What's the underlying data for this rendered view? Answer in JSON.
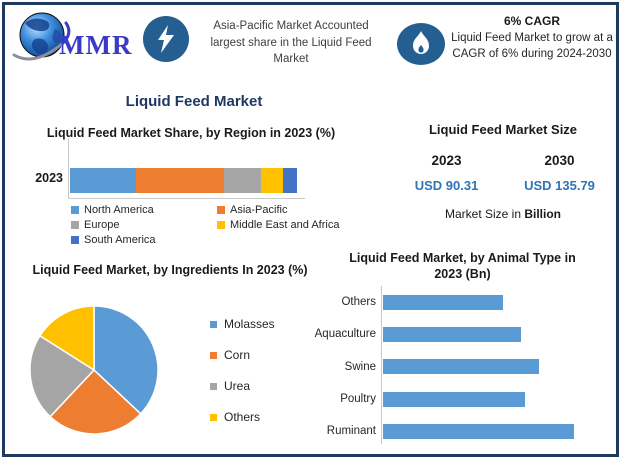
{
  "brand": {
    "logo_text": "MMR"
  },
  "header": {
    "highlight": {
      "icon": "lightning-icon",
      "text": "Asia-Pacific Market Accounted largest share in the Liquid Feed Market"
    },
    "cagr": {
      "icon": "flame-icon",
      "title": "6% CAGR",
      "text": "Liquid Feed Market to grow at a CAGR of 6% during 2024-2030"
    }
  },
  "main_title": "Liquid Feed Market",
  "market_size": {
    "title": "Liquid Feed Market Size",
    "years": [
      "2023",
      "2030"
    ],
    "values": [
      "USD 90.31",
      "USD 135.79"
    ],
    "note_prefix": "Market Size in ",
    "note_bold": "Billion"
  },
  "colors": {
    "accent_blue": "#5B9BD5",
    "orange": "#ED7D31",
    "gray": "#A5A5A5",
    "yellow": "#FFC000",
    "dark_blue": "#4472C4",
    "navy_title": "#1F3864",
    "icon_circle": "#255E91",
    "value_blue": "#2E75B6",
    "frame_border": "#1E3A5F"
  },
  "chart_data": [
    {
      "type": "bar",
      "subtype": "stacked-horizontal",
      "title": "Liquid Feed Market Share, by Region in 2023 (%)",
      "categories": [
        "2023"
      ],
      "series": [
        {
          "name": "North America",
          "values": [
            29
          ],
          "color": "#5B9BD5"
        },
        {
          "name": "Asia-Pacific",
          "values": [
            39
          ],
          "color": "#ED7D31"
        },
        {
          "name": "Europe",
          "values": [
            16
          ],
          "color": "#A5A5A5"
        },
        {
          "name": "Middle East and Africa",
          "values": [
            10
          ],
          "color": "#FFC000"
        },
        {
          "name": "South America",
          "values": [
            6
          ],
          "color": "#4472C4"
        }
      ],
      "xlim": [
        0,
        100
      ],
      "legend_position": "bottom",
      "grid": false
    },
    {
      "type": "pie",
      "title": "Liquid Feed Market, by Ingredients In 2023 (%)",
      "labels": [
        "Molasses",
        "Corn",
        "Urea",
        "Others"
      ],
      "values": [
        37,
        25,
        22,
        16
      ],
      "colors": [
        "#5B9BD5",
        "#ED7D31",
        "#A5A5A5",
        "#FFC000"
      ],
      "start_angle_deg": 0,
      "legend_position": "right"
    },
    {
      "type": "bar",
      "subtype": "horizontal",
      "title": "Liquid Feed Market, by Animal Type in 2023 (Bn)",
      "categories": [
        "Others",
        "Aquaculture",
        "Swine",
        "Poultry",
        "Ruminant"
      ],
      "values": [
        14.5,
        16.7,
        18.8,
        17.2,
        23.1
      ],
      "color": "#5B9BD5",
      "xlim": [
        0,
        25
      ],
      "grid": false
    }
  ]
}
